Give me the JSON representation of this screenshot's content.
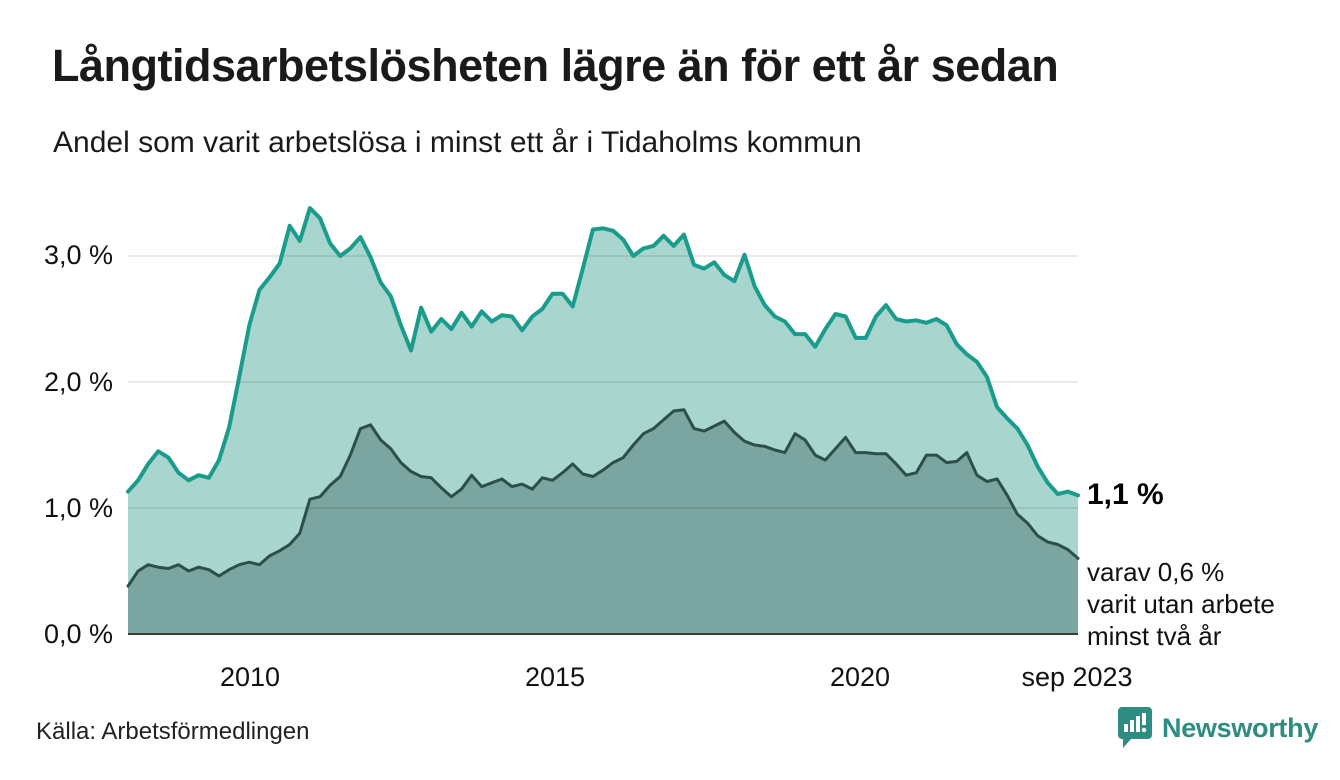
{
  "chart_data": {
    "type": "area",
    "title": "Långtidsarbetslösheten lägre än för ett år sedan",
    "subtitle": "Andel som varit arbetslösa i minst ett år i Tidaholms kommun",
    "x_start": 2008.0,
    "x_end": 2023.667,
    "x_step_months": 2,
    "ylim": [
      0,
      3.5
    ],
    "grid": true,
    "legend_position": "none",
    "y_ticks": [
      {
        "value": 3.0,
        "label": "3,0 %"
      },
      {
        "value": 2.0,
        "label": "2,0 %"
      },
      {
        "value": 1.0,
        "label": "1,0 %"
      },
      {
        "value": 0.0,
        "label": "0,0 %"
      }
    ],
    "x_ticks": [
      {
        "t": 2010.0,
        "label": "2010"
      },
      {
        "t": 2015.0,
        "label": "2015"
      },
      {
        "t": 2020.0,
        "label": "2020"
      },
      {
        "t": 2023.667,
        "label": "sep 2023"
      }
    ],
    "series": [
      {
        "name": "Andel arbetslösa minst ett år",
        "line_color": "#1a9c8c",
        "fill_color": "#a8d5ce",
        "line_width": 4,
        "values": [
          1.13,
          1.22,
          1.35,
          1.45,
          1.4,
          1.28,
          1.22,
          1.26,
          1.24,
          1.38,
          1.64,
          2.04,
          2.45,
          2.73,
          2.83,
          2.94,
          3.24,
          3.12,
          3.38,
          3.3,
          3.1,
          3.0,
          3.06,
          3.15,
          2.99,
          2.79,
          2.68,
          2.45,
          2.25,
          2.59,
          2.4,
          2.5,
          2.42,
          2.55,
          2.44,
          2.56,
          2.48,
          2.53,
          2.52,
          2.41,
          2.52,
          2.58,
          2.7,
          2.7,
          2.6,
          2.9,
          3.21,
          3.22,
          3.2,
          3.13,
          3.0,
          3.06,
          3.08,
          3.16,
          3.08,
          3.17,
          2.93,
          2.9,
          2.95,
          2.85,
          2.8,
          3.01,
          2.76,
          2.61,
          2.52,
          2.48,
          2.38,
          2.38,
          2.28,
          2.42,
          2.54,
          2.52,
          2.35,
          2.35,
          2.52,
          2.61,
          2.5,
          2.48,
          2.49,
          2.47,
          2.5,
          2.45,
          2.3,
          2.22,
          2.16,
          2.04,
          1.8,
          1.71,
          1.63,
          1.5,
          1.33,
          1.2,
          1.11,
          1.13,
          1.1
        ]
      },
      {
        "name": "varav utan arbete minst två år",
        "line_color": "#2d4f4b",
        "fill_color": "#7aa5a0",
        "line_width": 3,
        "values": [
          0.38,
          0.5,
          0.55,
          0.53,
          0.52,
          0.55,
          0.5,
          0.53,
          0.51,
          0.46,
          0.51,
          0.55,
          0.57,
          0.55,
          0.62,
          0.66,
          0.71,
          0.8,
          1.07,
          1.09,
          1.18,
          1.25,
          1.42,
          1.63,
          1.66,
          1.54,
          1.47,
          1.36,
          1.29,
          1.25,
          1.24,
          1.16,
          1.09,
          1.15,
          1.26,
          1.17,
          1.2,
          1.23,
          1.17,
          1.19,
          1.15,
          1.24,
          1.22,
          1.28,
          1.35,
          1.27,
          1.25,
          1.3,
          1.36,
          1.4,
          1.5,
          1.59,
          1.63,
          1.7,
          1.77,
          1.78,
          1.63,
          1.61,
          1.65,
          1.69,
          1.6,
          1.53,
          1.5,
          1.49,
          1.46,
          1.44,
          1.59,
          1.54,
          1.42,
          1.38,
          1.47,
          1.56,
          1.44,
          1.44,
          1.43,
          1.43,
          1.35,
          1.26,
          1.28,
          1.42,
          1.42,
          1.36,
          1.37,
          1.44,
          1.26,
          1.21,
          1.23,
          1.1,
          0.95,
          0.88,
          0.78,
          0.73,
          0.71,
          0.67,
          0.6
        ]
      }
    ],
    "annotations": {
      "end_value": "1,1 %",
      "sub_line1": "varav 0,6 %",
      "sub_line2": "varit utan arbete",
      "sub_line3": "minst två år"
    },
    "gridline_color": "rgba(0,0,0,0.11)",
    "baseline_color": "#3c3c3c"
  },
  "footer": {
    "source": "Källa: Arbetsförmedlingen",
    "brand": "Newsworthy",
    "brand_color": "#2f8c82"
  }
}
